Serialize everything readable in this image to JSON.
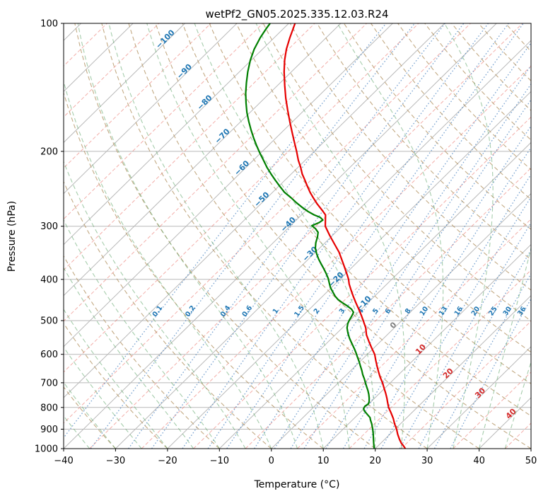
{
  "title": "wetPf2_GN05.2025.335.12.03.R24",
  "chart_data": {
    "type": "skewt_log_p",
    "xlabel": "Temperature (°C)",
    "ylabel": "Pressure (hPa)",
    "xlim": [
      -40,
      50
    ],
    "plim": [
      100,
      1000
    ],
    "skew_factor": 36.2,
    "grid": true,
    "x_ticks": [
      {
        "v": -40,
        "label": "−40"
      },
      {
        "v": -30,
        "label": "−30"
      },
      {
        "v": -20,
        "label": "−20"
      },
      {
        "v": -10,
        "label": "−10"
      },
      {
        "v": 0,
        "label": "0"
      },
      {
        "v": 10,
        "label": "10"
      },
      {
        "v": 20,
        "label": "20"
      },
      {
        "v": 30,
        "label": "30"
      },
      {
        "v": 40,
        "label": "40"
      },
      {
        "v": 50,
        "label": "50"
      }
    ],
    "y_ticks": [
      {
        "v": 100,
        "label": "100"
      },
      {
        "v": 200,
        "label": "200"
      },
      {
        "v": 300,
        "label": "300"
      },
      {
        "v": 400,
        "label": "400"
      },
      {
        "v": 500,
        "label": "500"
      },
      {
        "v": 600,
        "label": "600"
      },
      {
        "v": 700,
        "label": "700"
      },
      {
        "v": 800,
        "label": "800"
      },
      {
        "v": 900,
        "label": "900"
      },
      {
        "v": 1000,
        "label": "1000"
      }
    ],
    "isotherms": {
      "solid_min": -120,
      "solid_max": 50,
      "step": 10,
      "dashed_offset": 5
    },
    "dry_adiabats": {
      "min": -40,
      "max": 200,
      "step": 10
    },
    "moist_adiabats": {
      "min": -40,
      "max": 45,
      "step": 5
    },
    "mixing_ratios": {
      "values": [
        "0.1",
        "0.2",
        "0.4",
        "0.6",
        "1",
        "1.5",
        "2",
        "3",
        "4",
        "5",
        "6",
        "8",
        "10",
        "13",
        "16",
        "20",
        "25",
        "30",
        "36"
      ],
      "label_pressure": 478
    },
    "isotherm_labels": [
      {
        "t": -100,
        "label": "−100",
        "p": 110,
        "color": "#1f77b4"
      },
      {
        "t": -90,
        "label": "−90",
        "p": 131,
        "color": "#1f77b4"
      },
      {
        "t": -80,
        "label": "−80",
        "p": 155,
        "color": "#1f77b4"
      },
      {
        "t": -70,
        "label": "−70",
        "p": 186,
        "color": "#1f77b4"
      },
      {
        "t": -60,
        "label": "−60",
        "p": 221,
        "color": "#1f77b4"
      },
      {
        "t": -50,
        "label": "−50",
        "p": 262,
        "color": "#1f77b4"
      },
      {
        "t": -40,
        "label": "−40",
        "p": 300,
        "color": "#1f77b4"
      },
      {
        "t": -30,
        "label": "−30",
        "p": 352,
        "color": "#1f77b4"
      },
      {
        "t": -20,
        "label": "−20",
        "p": 404,
        "color": "#1f77b4"
      },
      {
        "t": -10,
        "label": "−10",
        "p": 460,
        "color": "#1f77b4"
      },
      {
        "t": 0,
        "label": "0",
        "p": 518,
        "color": "#7f7f7f"
      },
      {
        "t": 10,
        "label": "10",
        "p": 590,
        "color": "#d42a2a"
      },
      {
        "t": 20,
        "label": "20",
        "p": 672,
        "color": "#d42a2a"
      },
      {
        "t": 30,
        "label": "30",
        "p": 747,
        "color": "#d42a2a"
      },
      {
        "t": 40,
        "label": "40",
        "p": 836,
        "color": "#d42a2a"
      }
    ],
    "colors": {
      "grid": "#b9b9b9",
      "isotherm_dashed": "rgba(231,94,84,0.5)",
      "dry_adiabat": "rgba(184,155,110,0.85)",
      "moist_adiabat": "rgba(93,164,104,0.55)",
      "mixing": "rgba(66,126,189,0.7)",
      "temperature": "#e60000",
      "dewpoint": "#007f00",
      "label_blue": "#1f77b4",
      "label_red": "#d42a2a",
      "label_gray": "#7f7f7f",
      "axis": "#000000"
    },
    "series": [
      {
        "name": "temperature",
        "color_key": "temperature",
        "points": [
          [
            1000,
            25.8
          ],
          [
            985,
            24.9
          ],
          [
            970,
            23.9
          ],
          [
            950,
            22.8
          ],
          [
            925,
            21.5
          ],
          [
            900,
            20.3
          ],
          [
            875,
            18.9
          ],
          [
            850,
            17.6
          ],
          [
            825,
            16.1
          ],
          [
            800,
            14.5
          ],
          [
            780,
            13.4
          ],
          [
            760,
            12.3
          ],
          [
            740,
            11.1
          ],
          [
            720,
            9.8
          ],
          [
            700,
            8.5
          ],
          [
            680,
            7.0
          ],
          [
            660,
            5.6
          ],
          [
            640,
            4.2
          ],
          [
            620,
            2.8
          ],
          [
            600,
            1.4
          ],
          [
            580,
            -0.4
          ],
          [
            560,
            -2.2
          ],
          [
            540,
            -4.0
          ],
          [
            520,
            -5.5
          ],
          [
            500,
            -7.4
          ],
          [
            485,
            -8.9
          ],
          [
            470,
            -10.5
          ],
          [
            455,
            -12.2
          ],
          [
            440,
            -13.9
          ],
          [
            425,
            -15.6
          ],
          [
            410,
            -17.3
          ],
          [
            400,
            -18.3
          ],
          [
            390,
            -19.5
          ],
          [
            375,
            -21.4
          ],
          [
            360,
            -23.4
          ],
          [
            345,
            -25.5
          ],
          [
            330,
            -28.0
          ],
          [
            315,
            -30.6
          ],
          [
            300,
            -33.2
          ],
          [
            290,
            -34.4
          ],
          [
            282,
            -35.4
          ],
          [
            274,
            -37.2
          ],
          [
            266,
            -39.1
          ],
          [
            258,
            -40.9
          ],
          [
            250,
            -42.7
          ],
          [
            242,
            -44.4
          ],
          [
            234,
            -46.1
          ],
          [
            226,
            -47.9
          ],
          [
            218,
            -49.5
          ],
          [
            210,
            -51.3
          ],
          [
            200,
            -53.4
          ],
          [
            190,
            -55.7
          ],
          [
            180,
            -58.1
          ],
          [
            170,
            -60.6
          ],
          [
            160,
            -63.2
          ],
          [
            150,
            -65.9
          ],
          [
            140,
            -68.6
          ],
          [
            130,
            -71.4
          ],
          [
            122,
            -73.6
          ],
          [
            115,
            -75.4
          ],
          [
            108,
            -77.0
          ],
          [
            103,
            -78.1
          ],
          [
            100,
            -78.8
          ]
        ]
      },
      {
        "name": "dewpoint",
        "color_key": "dewpoint",
        "points": [
          [
            1000,
            19.8
          ],
          [
            985,
            19.2
          ],
          [
            970,
            18.6
          ],
          [
            950,
            17.8
          ],
          [
            925,
            16.8
          ],
          [
            900,
            15.7
          ],
          [
            875,
            14.5
          ],
          [
            855,
            13.4
          ],
          [
            845,
            12.9
          ],
          [
            835,
            12.1
          ],
          [
            825,
            11.3
          ],
          [
            815,
            10.5
          ],
          [
            805,
            9.9
          ],
          [
            795,
            9.7
          ],
          [
            785,
            9.9
          ],
          [
            775,
            9.6
          ],
          [
            760,
            8.9
          ],
          [
            745,
            8.1
          ],
          [
            730,
            7.2
          ],
          [
            715,
            6.2
          ],
          [
            700,
            5.2
          ],
          [
            685,
            4.2
          ],
          [
            670,
            3.1
          ],
          [
            655,
            2.1
          ],
          [
            640,
            1.0
          ],
          [
            625,
            -0.1
          ],
          [
            610,
            -1.3
          ],
          [
            595,
            -2.5
          ],
          [
            580,
            -3.8
          ],
          [
            565,
            -5.2
          ],
          [
            550,
            -6.6
          ],
          [
            535,
            -7.9
          ],
          [
            520,
            -9.1
          ],
          [
            508,
            -9.8
          ],
          [
            498,
            -10.2
          ],
          [
            488,
            -10.5
          ],
          [
            478,
            -10.9
          ],
          [
            470,
            -11.9
          ],
          [
            462,
            -13.3
          ],
          [
            454,
            -14.9
          ],
          [
            446,
            -16.4
          ],
          [
            438,
            -17.6
          ],
          [
            428,
            -18.9
          ],
          [
            418,
            -20.2
          ],
          [
            408,
            -21.3
          ],
          [
            398,
            -22.4
          ],
          [
            388,
            -23.7
          ],
          [
            378,
            -25.1
          ],
          [
            368,
            -26.6
          ],
          [
            358,
            -28.1
          ],
          [
            348,
            -29.5
          ],
          [
            338,
            -30.8
          ],
          [
            328,
            -31.8
          ],
          [
            318,
            -32.6
          ],
          [
            310,
            -33.4
          ],
          [
            304,
            -34.6
          ],
          [
            299,
            -35.9
          ],
          [
            294,
            -35.1
          ],
          [
            290,
            -34.9
          ],
          [
            286,
            -35.9
          ],
          [
            282,
            -37.6
          ],
          [
            277,
            -39.4
          ],
          [
            271,
            -41.3
          ],
          [
            264,
            -43.4
          ],
          [
            257,
            -45.4
          ],
          [
            250,
            -47.6
          ],
          [
            242,
            -49.7
          ],
          [
            234,
            -51.8
          ],
          [
            226,
            -53.9
          ],
          [
            218,
            -56.0
          ],
          [
            210,
            -58.0
          ],
          [
            202,
            -60.1
          ],
          [
            194,
            -62.2
          ],
          [
            186,
            -64.3
          ],
          [
            178,
            -66.4
          ],
          [
            170,
            -68.5
          ],
          [
            162,
            -70.6
          ],
          [
            154,
            -72.6
          ],
          [
            146,
            -74.6
          ],
          [
            138,
            -76.5
          ],
          [
            130,
            -78.4
          ],
          [
            122,
            -80.2
          ],
          [
            115,
            -81.6
          ],
          [
            108,
            -82.7
          ],
          [
            103,
            -83.3
          ],
          [
            100,
            -83.6
          ]
        ]
      }
    ]
  }
}
